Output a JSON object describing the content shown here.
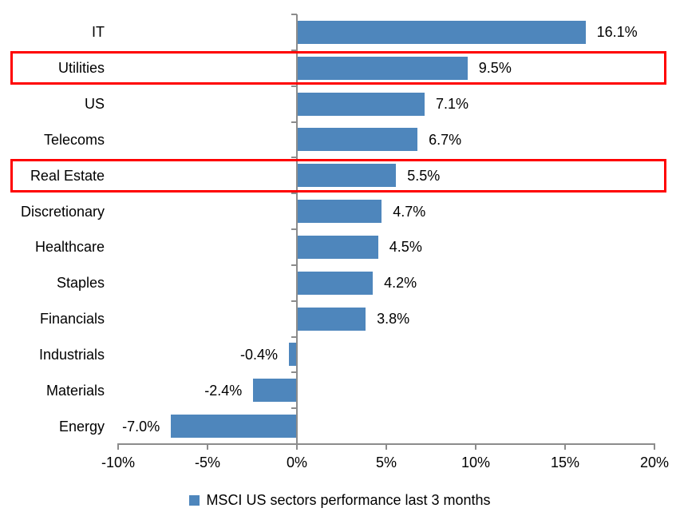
{
  "chart_data": {
    "type": "bar",
    "orientation": "horizontal",
    "legend": "MSCI US sectors performance last 3 months",
    "legend_position": "bottom",
    "grid": false,
    "categories": [
      "IT",
      "Utilities",
      "US",
      "Telecoms",
      "Real Estate",
      "Discretionary",
      "Healthcare",
      "Staples",
      "Financials",
      "Industrials",
      "Materials",
      "Energy"
    ],
    "values": [
      16.1,
      9.5,
      7.1,
      6.7,
      5.5,
      4.7,
      4.5,
      4.2,
      3.8,
      -0.4,
      -2.4,
      -7.0
    ],
    "value_labels": [
      "16.1%",
      "9.5%",
      "7.1%",
      "6.7%",
      "5.5%",
      "4.7%",
      "4.5%",
      "4.2%",
      "3.8%",
      "-0.4%",
      "-2.4%",
      "-7.0%"
    ],
    "x_axis": {
      "min": -10,
      "max": 20,
      "tick_values": [
        -10,
        -5,
        0,
        5,
        10,
        15,
        20
      ],
      "tick_labels": [
        "-10%",
        "-5%",
        "0%",
        "5%",
        "10%",
        "15%",
        "20%"
      ]
    },
    "highlighted_categories": [
      "Utilities",
      "Real Estate"
    ],
    "colors": {
      "bar": "#4E86BC",
      "highlight_border": "#FF0000",
      "axis": "#8C8C8C",
      "text": "#000000",
      "background": "#FFFFFF"
    }
  }
}
